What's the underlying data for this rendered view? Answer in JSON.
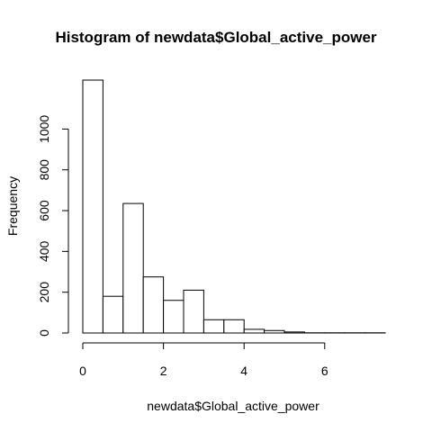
{
  "chart_data": {
    "type": "bar",
    "title": "Histogram of newdata$Global_active_power",
    "xlabel": "newdata$Global_active_power",
    "ylabel": "Frequency",
    "bin_width": 0.5,
    "bins": [
      {
        "start": 0.0,
        "end": 0.5,
        "count": 1240
      },
      {
        "start": 0.5,
        "end": 1.0,
        "count": 180
      },
      {
        "start": 1.0,
        "end": 1.5,
        "count": 635
      },
      {
        "start": 1.5,
        "end": 2.0,
        "count": 275
      },
      {
        "start": 2.0,
        "end": 2.5,
        "count": 160
      },
      {
        "start": 2.5,
        "end": 3.0,
        "count": 210
      },
      {
        "start": 3.0,
        "end": 3.5,
        "count": 65
      },
      {
        "start": 3.5,
        "end": 4.0,
        "count": 65
      },
      {
        "start": 4.0,
        "end": 4.5,
        "count": 18
      },
      {
        "start": 4.5,
        "end": 5.0,
        "count": 12
      },
      {
        "start": 5.0,
        "end": 5.5,
        "count": 5
      },
      {
        "start": 5.5,
        "end": 6.0,
        "count": 1
      },
      {
        "start": 6.0,
        "end": 6.5,
        "count": 1
      },
      {
        "start": 6.5,
        "end": 7.0,
        "count": 1
      },
      {
        "start": 7.0,
        "end": 7.5,
        "count": 1
      }
    ],
    "xlim": [
      0,
      7.5
    ],
    "ylim": [
      0,
      1240
    ],
    "xticks": [
      0,
      2,
      4,
      6
    ],
    "yticks": [
      0,
      200,
      400,
      600,
      800,
      1000
    ],
    "grid": false,
    "legend": "none"
  }
}
